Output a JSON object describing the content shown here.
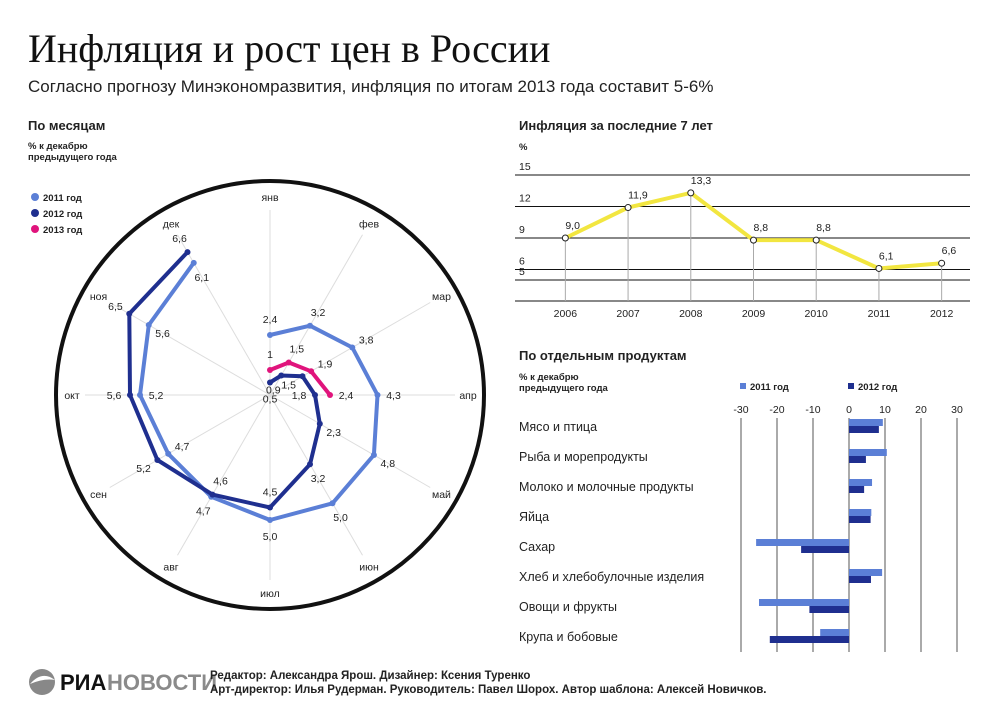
{
  "header": {
    "title": "Инфляция и рост цен в России",
    "subtitle": "Согласно прогнозу Минэкономразвития, инфляция по итогам 2013 года составит 5-6%"
  },
  "chart_data": [
    {
      "type": "radar",
      "title": "По месяцам",
      "subtitle_lines": [
        "% к декабрю",
        "предыдущего года"
      ],
      "categories": [
        "янв",
        "фев",
        "мар",
        "апр",
        "май",
        "июн",
        "июл",
        "авг",
        "сен",
        "окт",
        "ноя",
        "дек"
      ],
      "rlim": [
        0,
        7
      ],
      "legend": "top-left",
      "series": [
        {
          "name": "2011 год",
          "color": "#5b7fd6",
          "values": [
            2.4,
            3.2,
            3.8,
            4.3,
            4.8,
            5.0,
            5.0,
            4.7,
            4.7,
            5.2,
            5.6,
            6.1
          ],
          "value_labels": [
            "2,4",
            "3,2",
            "3,8",
            "4,3",
            "4,8",
            "5,0",
            "5,0",
            "4,7",
            "4,7",
            "5,2",
            "5,6",
            "6,1"
          ]
        },
        {
          "name": "2012 год",
          "color": "#1f2f8f",
          "values": [
            0.5,
            0.9,
            1.5,
            1.8,
            2.3,
            3.2,
            4.5,
            4.6,
            5.2,
            5.6,
            6.5,
            6.6
          ],
          "value_labels": [
            "0,5",
            "0,9",
            "1,5",
            "1,8",
            "2,3",
            "3,2",
            "4,5",
            "4,6",
            "5,2",
            "5,6",
            "6,5",
            "6,6"
          ]
        },
        {
          "name": "2013 год",
          "color": "#e0147c",
          "values": [
            1,
            1.5,
            1.9,
            2.4,
            null,
            null,
            null,
            null,
            null,
            null,
            null,
            null
          ],
          "value_labels": [
            "1",
            "1,5",
            "1,9",
            "2,4",
            null,
            null,
            null,
            null,
            null,
            null,
            null,
            null
          ]
        }
      ]
    },
    {
      "type": "line",
      "title": "Инфляция за последние 7 лет",
      "y_label": "%",
      "categories": [
        "2006",
        "2007",
        "2008",
        "2009",
        "2010",
        "2011",
        "2012"
      ],
      "values": [
        9.0,
        11.9,
        13.3,
        8.8,
        8.8,
        6.1,
        6.6
      ],
      "value_labels": [
        "9,0",
        "11,9",
        "13,3",
        "8,8",
        "8,8",
        "6,1",
        "6,6"
      ],
      "color": "#f2e640",
      "ylim": [
        3,
        15
      ],
      "yticks": [
        5,
        6,
        9,
        12,
        15
      ],
      "grid": true
    },
    {
      "type": "hbar",
      "title": "По отдельным продуктам",
      "subtitle_lines": [
        "% к декабрю",
        "предыдущего года"
      ],
      "categories": [
        "Мясо и птица",
        "Рыба и морепродукты",
        "Молоко и молочные продукты",
        "Яйца",
        "Сахар",
        "Хлеб и хлебобулочные изделия",
        "Овощи и фрукты",
        "Крупа и бобовые"
      ],
      "xlim": [
        -30,
        30
      ],
      "xticks": [
        -30,
        -20,
        -10,
        0,
        10,
        20,
        30
      ],
      "grid": true,
      "series": [
        {
          "name": "2011 год",
          "color": "#5b7fd6",
          "values": [
            9.4,
            10.5,
            6.4,
            6.2,
            -25.8,
            9.2,
            -25,
            -8
          ]
        },
        {
          "name": "2012 год",
          "color": "#1f2f8f",
          "values": [
            8.3,
            4.7,
            4.2,
            6.0,
            -13.3,
            6.1,
            -11,
            -22
          ]
        }
      ]
    }
  ],
  "footer": {
    "logo_bold": "РИА",
    "logo_light": "НОВОСТИ",
    "credits": [
      "Редактор: Александра Ярош. Дизайнер: Ксения Туренко",
      "Арт-директор: Илья Рудерман. Руководитель: Павел Шорох. Автор шаблона: Алексей Новичков."
    ]
  }
}
